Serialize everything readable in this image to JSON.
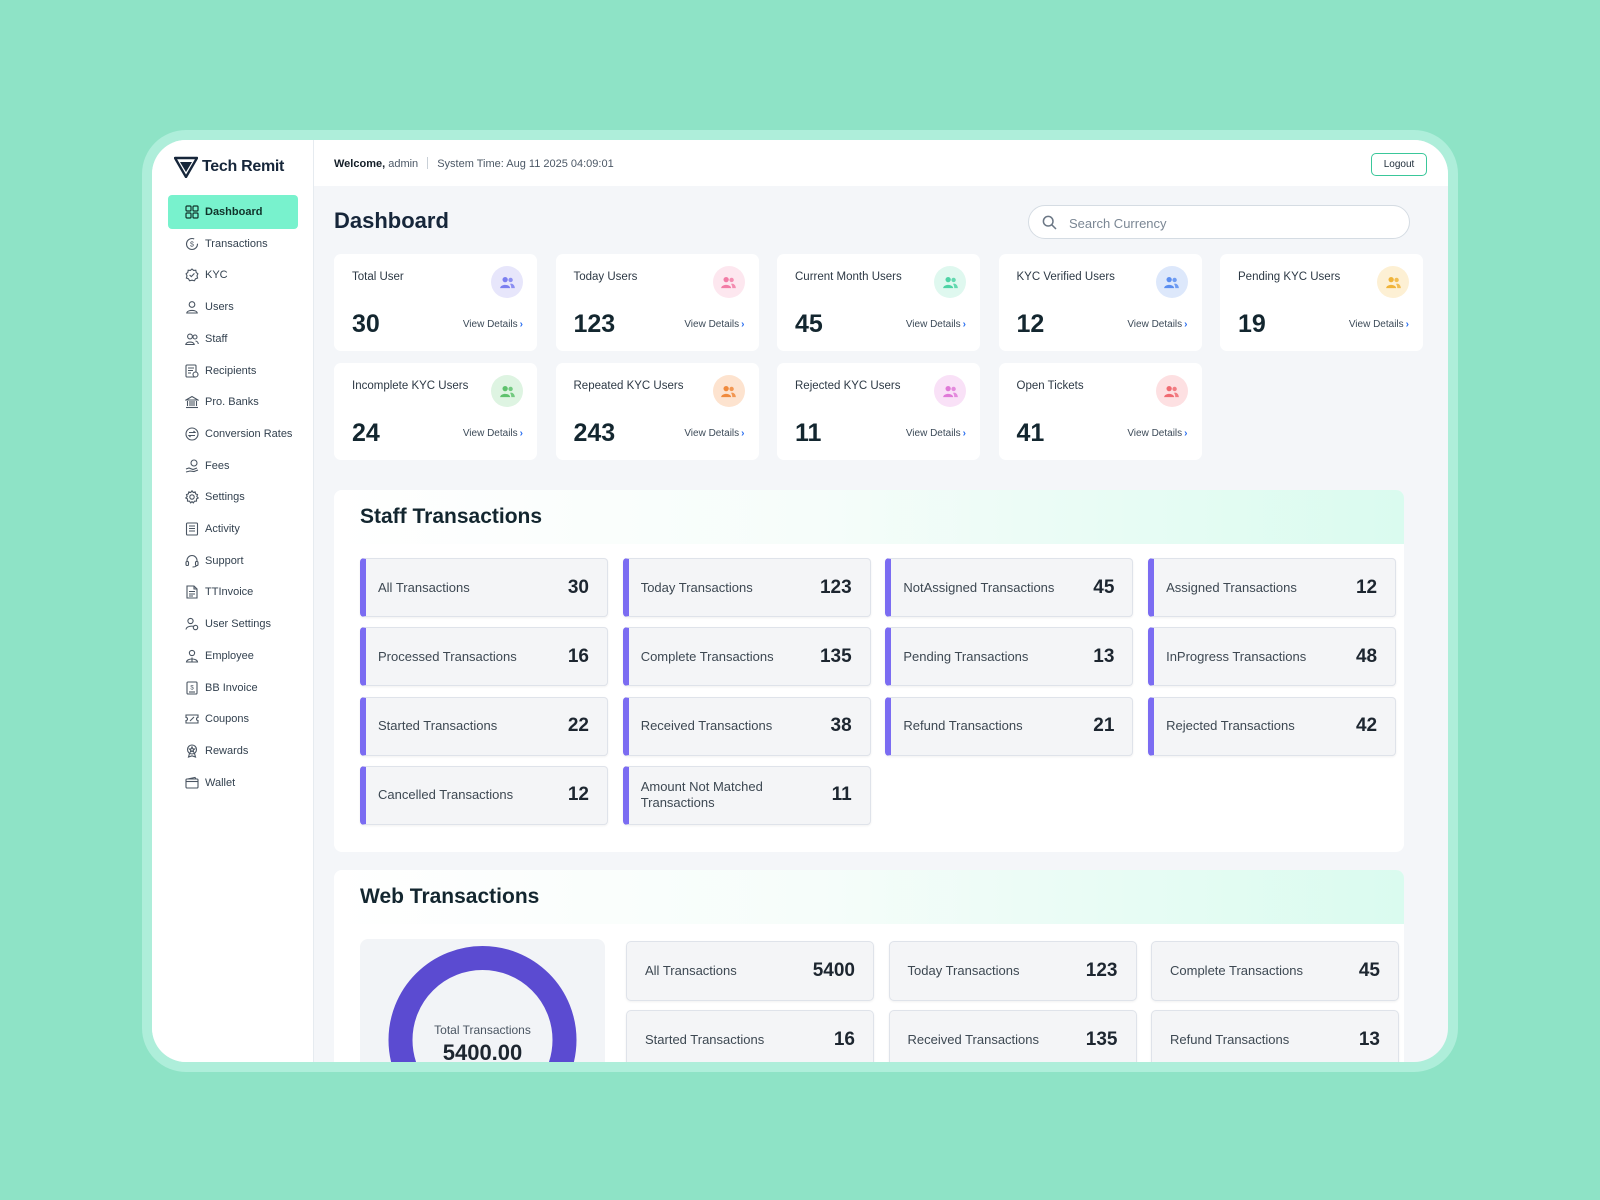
{
  "app": {
    "name": "Tech Remit"
  },
  "sidebar": {
    "items": [
      {
        "label": "Dashboard",
        "icon": "dashboard-icon"
      },
      {
        "label": "Transactions",
        "icon": "transactions-icon"
      },
      {
        "label": "KYC",
        "icon": "kyc-icon"
      },
      {
        "label": "Users",
        "icon": "user-icon"
      },
      {
        "label": "Staff",
        "icon": "staff-icon"
      },
      {
        "label": "Recipients",
        "icon": "recipients-icon"
      },
      {
        "label": "Pro. Banks",
        "icon": "bank-icon"
      },
      {
        "label": "Conversion Rates",
        "icon": "conversion-icon"
      },
      {
        "label": "Fees",
        "icon": "fees-icon"
      },
      {
        "label": "Settings",
        "icon": "gear-icon"
      },
      {
        "label": "Activity",
        "icon": "activity-icon"
      },
      {
        "label": "Support",
        "icon": "headset-icon"
      },
      {
        "label": "TTInvoice",
        "icon": "invoice-icon"
      },
      {
        "label": "User Settings",
        "icon": "user-settings-icon"
      },
      {
        "label": "Employee",
        "icon": "employee-icon"
      },
      {
        "label": "BB Invoice",
        "icon": "bb-invoice-icon"
      },
      {
        "label": "Coupons",
        "icon": "coupon-icon"
      },
      {
        "label": "Rewards",
        "icon": "rewards-icon"
      },
      {
        "label": "Wallet",
        "icon": "wallet-icon"
      }
    ]
  },
  "header": {
    "welcome_label": "Welcome,",
    "username": "admin",
    "system_time": "System Time: Aug 11 2025 04:09:01",
    "logout_label": "Logout"
  },
  "main": {
    "title": "Dashboard",
    "search_placeholder": "Search Currency",
    "stats": [
      {
        "label": "Total User",
        "value": "30",
        "link": "View Details",
        "color": "#7b7ff0",
        "bg": "#e7e6fb"
      },
      {
        "label": "Today Users",
        "value": "123",
        "link": "View Details",
        "color": "#f27ca6",
        "bg": "#fde7ef"
      },
      {
        "label": "Current Month Users",
        "value": "45",
        "link": "View Details",
        "color": "#4ed3a5",
        "bg": "#dff8ef"
      },
      {
        "label": "KYC Verified Users",
        "value": "12",
        "link": "View Details",
        "color": "#5b8ef0",
        "bg": "#dde8fb"
      },
      {
        "label": "Pending KYC Users",
        "value": "19",
        "link": "View Details",
        "color": "#f0b43a",
        "bg": "#fdf0d4"
      },
      {
        "label": "Incomplete KYC Users",
        "value": "24",
        "link": "View Details",
        "color": "#5fc26e",
        "bg": "#def4e2"
      },
      {
        "label": "Repeated KYC Users",
        "value": "243",
        "link": "View Details",
        "color": "#f08a3c",
        "bg": "#fde3cf"
      },
      {
        "label": "Rejected KYC Users",
        "value": "11",
        "link": "View Details",
        "color": "#e07ad8",
        "bg": "#f9e1f7"
      },
      {
        "label": "Open Tickets",
        "value": "41",
        "link": "View Details",
        "color": "#f06b72",
        "bg": "#fde0e2"
      }
    ]
  },
  "staff_transactions": {
    "title": "Staff Transactions",
    "items": [
      {
        "label": "All Transactions",
        "value": "30"
      },
      {
        "label": "Today Transactions",
        "value": "123"
      },
      {
        "label": "NotAssigned Transactions",
        "value": "45"
      },
      {
        "label": "Assigned Transactions",
        "value": "12"
      },
      {
        "label": "Processed Transactions",
        "value": "16"
      },
      {
        "label": "Complete Transactions",
        "value": "135"
      },
      {
        "label": "Pending Transactions",
        "value": "13"
      },
      {
        "label": "InProgress Transactions",
        "value": "48"
      },
      {
        "label": "Started Transactions",
        "value": "22"
      },
      {
        "label": "Received Transactions",
        "value": "38"
      },
      {
        "label": "Refund Transactions",
        "value": "21"
      },
      {
        "label": "Rejected Transactions",
        "value": "42"
      },
      {
        "label": "Cancelled Transactions",
        "value": "12"
      },
      {
        "label": "Amount Not Matched Transactions",
        "value": "11"
      }
    ]
  },
  "web_transactions": {
    "title": "Web Transactions",
    "donut_label": "Total Transactions",
    "donut_value": "5400.00",
    "donut_color": "#5b4bd1",
    "items": [
      {
        "label": "All Transactions",
        "value": "5400"
      },
      {
        "label": "Today Transactions",
        "value": "123"
      },
      {
        "label": "Complete Transactions",
        "value": "45"
      },
      {
        "label": "Started Transactions",
        "value": "16"
      },
      {
        "label": "Received Transactions",
        "value": "135"
      },
      {
        "label": "Refund Transactions",
        "value": "13"
      }
    ]
  }
}
